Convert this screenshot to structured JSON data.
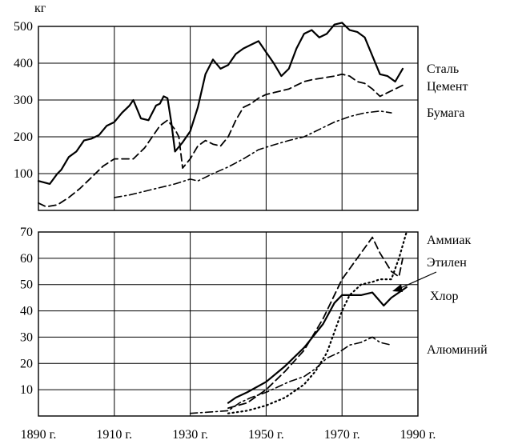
{
  "chart_data": [
    {
      "type": "line",
      "unit_label": "кг",
      "xlim": [
        1890,
        1990
      ],
      "ylim": [
        0,
        500
      ],
      "y_ticks": [
        "100",
        "200",
        "300",
        "400",
        "500"
      ],
      "grid": true,
      "legend_placement": "right",
      "series": [
        {
          "name": "Сталь",
          "style": "solid",
          "x": [
            1890,
            1893,
            1895,
            1896,
            1898,
            1900,
            1902,
            1904,
            1906,
            1908,
            1910,
            1912,
            1914,
            1915,
            1917,
            1919,
            1921,
            1922,
            1923,
            1924,
            1925,
            1926,
            1928,
            1930,
            1932,
            1934,
            1936,
            1938,
            1940,
            1942,
            1944,
            1946,
            1948,
            1950,
            1952,
            1954,
            1956,
            1958,
            1960,
            1962,
            1964,
            1966,
            1968,
            1970,
            1972,
            1974,
            1976,
            1978,
            1980,
            1982,
            1984,
            1986
          ],
          "values": [
            80,
            72,
            100,
            110,
            145,
            160,
            190,
            195,
            205,
            230,
            240,
            265,
            285,
            300,
            250,
            245,
            285,
            290,
            310,
            305,
            240,
            160,
            185,
            215,
            280,
            370,
            410,
            385,
            395,
            425,
            440,
            450,
            460,
            430,
            400,
            365,
            385,
            440,
            480,
            490,
            470,
            480,
            505,
            510,
            490,
            485,
            470,
            420,
            370,
            365,
            350,
            385
          ]
        },
        {
          "name": "Цемент",
          "style": "dashed",
          "x": [
            1890,
            1892,
            1895,
            1898,
            1901,
            1904,
            1907,
            1910,
            1912,
            1915,
            1918,
            1920,
            1922,
            1924,
            1926,
            1927,
            1928,
            1930,
            1932,
            1934,
            1936,
            1938,
            1940,
            1942,
            1944,
            1946,
            1948,
            1950,
            1952,
            1954,
            1956,
            1958,
            1960,
            1962,
            1965,
            1968,
            1970,
            1972,
            1974,
            1976,
            1978,
            1980,
            1982,
            1984,
            1986
          ],
          "values": [
            20,
            10,
            15,
            35,
            60,
            90,
            120,
            140,
            140,
            140,
            170,
            200,
            230,
            245,
            220,
            200,
            115,
            140,
            175,
            190,
            180,
            175,
            200,
            245,
            280,
            290,
            305,
            315,
            320,
            325,
            330,
            340,
            350,
            355,
            360,
            365,
            370,
            365,
            350,
            345,
            330,
            310,
            320,
            330,
            340
          ]
        },
        {
          "name": "Бумага",
          "style": "dashdot",
          "x": [
            1910,
            1914,
            1918,
            1922,
            1926,
            1930,
            1932,
            1936,
            1940,
            1944,
            1948,
            1952,
            1956,
            1960,
            1964,
            1968,
            1972,
            1976,
            1980,
            1983
          ],
          "values": [
            35,
            42,
            52,
            62,
            72,
            85,
            80,
            100,
            118,
            140,
            165,
            178,
            190,
            200,
            220,
            240,
            255,
            265,
            270,
            265
          ]
        }
      ]
    },
    {
      "type": "line",
      "xlim": [
        1890,
        1990
      ],
      "ylim": [
        0,
        70
      ],
      "y_ticks": [
        "10",
        "20",
        "30",
        "40",
        "50",
        "60",
        "70"
      ],
      "x_ticks": [
        "1890 г.",
        "1910 г.",
        "1930 г.",
        "1950 г.",
        "1970 г.",
        "1990 г."
      ],
      "grid": true,
      "legend_placement": "right",
      "series": [
        {
          "name": "Аммиак",
          "style": "dashed",
          "x": [
            1940,
            1945,
            1950,
            1955,
            1960,
            1965,
            1970,
            1975,
            1978,
            1980,
            1983,
            1985,
            1986
          ],
          "values": [
            3,
            5,
            10,
            17,
            25,
            37,
            52,
            62,
            68,
            62,
            55,
            53,
            60
          ]
        },
        {
          "name": "Этилен",
          "style": "dotted",
          "x": [
            1940,
            1945,
            1950,
            1955,
            1960,
            1963,
            1966,
            1968,
            1970,
            1972,
            1975,
            1978,
            1980,
            1983,
            1985,
            1987
          ],
          "values": [
            1,
            2,
            4,
            7,
            12,
            17,
            24,
            32,
            40,
            46,
            50,
            51,
            52,
            52,
            60,
            70
          ]
        },
        {
          "name": "Хлор",
          "style": "solid",
          "x": [
            1940,
            1942,
            1945,
            1950,
            1955,
            1960,
            1965,
            1968,
            1970,
            1972,
            1975,
            1978,
            1981,
            1983,
            1985,
            1987
          ],
          "values": [
            5,
            7,
            9,
            13,
            19,
            26,
            35,
            43,
            46,
            46,
            46,
            47,
            42,
            45,
            47,
            49
          ]
        },
        {
          "name": "Алюминий",
          "style": "dashdot",
          "x": [
            1930,
            1935,
            1940,
            1943,
            1946,
            1950,
            1953,
            1956,
            1960,
            1963,
            1966,
            1969,
            1972,
            1975,
            1978,
            1980,
            1983
          ],
          "values": [
            1,
            1.5,
            2,
            5,
            7,
            9,
            11,
            13,
            15,
            18,
            22,
            24,
            27,
            28,
            30,
            28,
            27
          ]
        }
      ]
    }
  ]
}
